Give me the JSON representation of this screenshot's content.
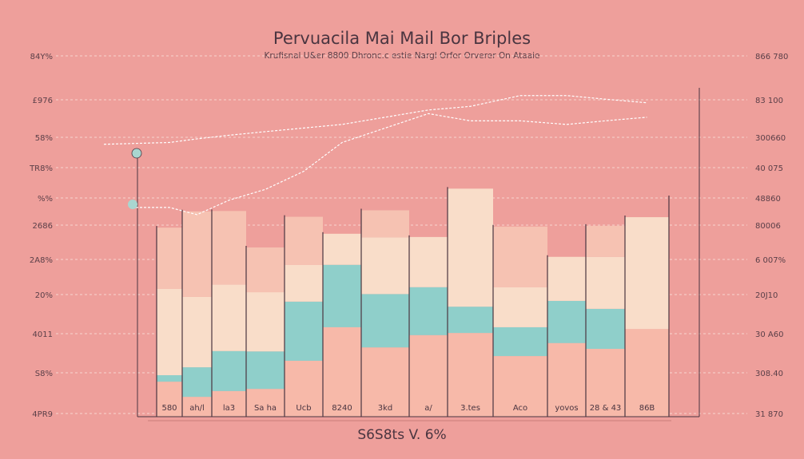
{
  "chart_data": {
    "type": "bar",
    "stacked": true,
    "title": "Pervuacila Mai Mail Bor Briples",
    "subtitle": "Krufisnal U&er 8800 Dhronc.c estie Nargl Orfer Orverer On Ataaie",
    "footer": "S6S8ts  V. 6%",
    "categories": [
      "580",
      "ah/l",
      "la3",
      "Sa ha",
      "Ucb",
      "8240",
      "3kd",
      "a/",
      "3.tes",
      "Aco",
      "yovos",
      "28 & 43",
      "86B"
    ],
    "left_tick_labels": [
      "84Y%",
      "£976",
      "58%",
      "TR8%",
      "%%",
      "2686",
      "2A8%",
      "20%",
      "4011",
      "S8%",
      "4PR9"
    ],
    "right_tick_labels": [
      "866 780",
      "83 100",
      "300660",
      "40 075",
      "48860",
      "80006",
      "6 007%",
      "20J10",
      "30 A60",
      "308.40",
      "31 870"
    ],
    "ylim": [
      0,
      100
    ],
    "grid": true,
    "legend": "none",
    "colors": {
      "background": "#ee9f9b",
      "bottom": "#f7b9a9",
      "teal": "#8fcfca",
      "cream": "#f9ddc9",
      "top": "#f6c2b2",
      "line": "#ffffff"
    },
    "series": [
      {
        "values": [
          9.7,
          5.5,
          7.1,
          7.7,
          15.5,
          24.8,
          19.2,
          22.6,
          23.2,
          16.8,
          20.4,
          18.8,
          24.3
        ]
      },
      {
        "values": [
          1.8,
          8.2,
          11.1,
          10.4,
          16.4,
          17.3,
          14.8,
          13.3,
          7.3,
          8.0,
          11.7,
          11.1,
          0
        ]
      },
      {
        "values": [
          23.9,
          19.5,
          18.4,
          16.4,
          10.2,
          8.6,
          15.7,
          13.9,
          32.7,
          11.1,
          12.2,
          14.4,
          31.0
        ]
      },
      {
        "values": [
          17.0,
          23.7,
          20.4,
          12.4,
          13.3,
          0,
          7.5,
          0,
          0,
          16.8,
          0,
          8.6,
          0
        ]
      }
    ],
    "lines": [
      {
        "values": [
          76,
          77,
          78,
          79,
          80,
          81,
          83,
          85,
          86,
          89,
          89,
          88,
          87
        ]
      },
      {
        "values": [
          58,
          56,
          60,
          63,
          68,
          76,
          80,
          84,
          82,
          82,
          81,
          82,
          83
        ]
      }
    ]
  }
}
